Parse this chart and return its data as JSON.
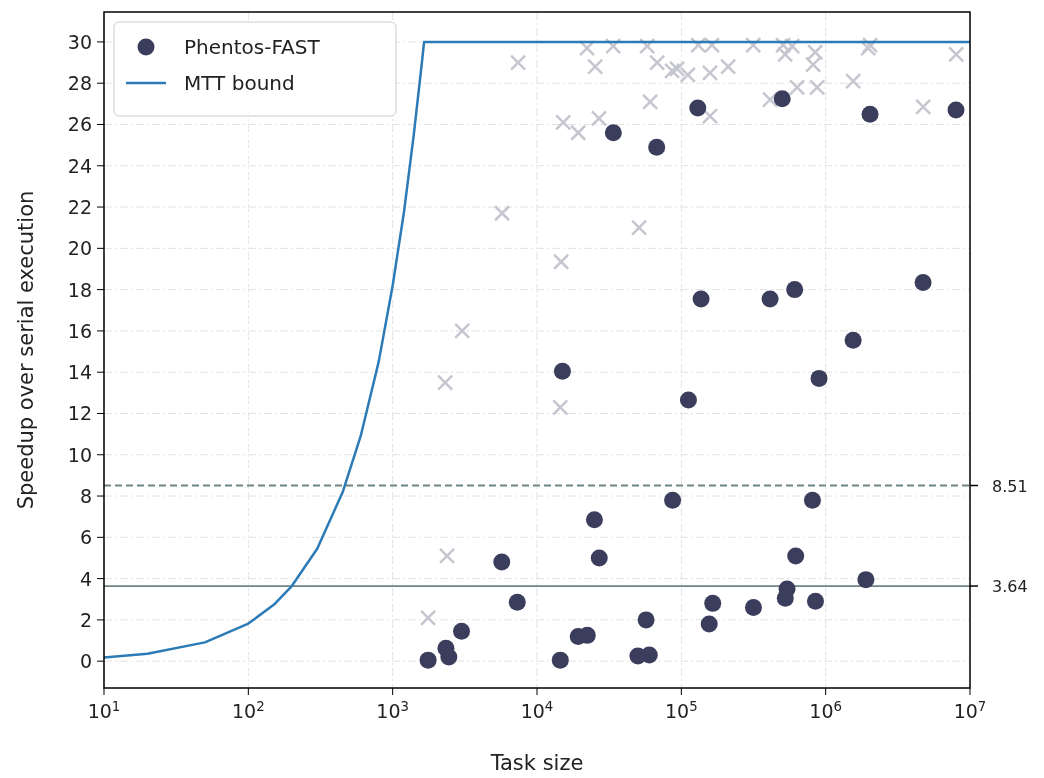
{
  "chart_data": {
    "type": "scatter",
    "xlabel": "Task size",
    "ylabel": "Speedup over serial execution",
    "log": "x",
    "grid": true,
    "legend": "top left",
    "xlim": [
      10,
      10000000
    ],
    "ylim": [
      -1.3,
      31.45
    ],
    "xticks": [
      {
        "value": 10,
        "label": "10$^{1}$"
      },
      {
        "value": 100,
        "label": "10$^{2}$"
      },
      {
        "value": 1000,
        "label": "10$^{3}$"
      },
      {
        "value": 10000,
        "label": "10$^{4}$"
      },
      {
        "value": 100000,
        "label": "10$^{5}$"
      },
      {
        "value": 1000000,
        "label": "10$^{6}$"
      },
      {
        "value": 10000000,
        "label": "10$^{7}$"
      }
    ],
    "yticks": [
      0,
      2,
      4,
      6,
      8,
      10,
      12,
      14,
      16,
      18,
      20,
      22,
      24,
      26,
      28,
      30
    ],
    "ref_lines": [
      {
        "axis": "y",
        "value": 8.51,
        "label": "8.51",
        "color": "#6e8585",
        "line_style": "dashed"
      },
      {
        "axis": "y",
        "value": 3.64,
        "label": "3.64",
        "color": "#6e8585",
        "line_style": "solid"
      }
    ],
    "series": [
      {
        "marker": "cross",
        "color": "#c5c6d0",
        "x": [
          1760,
          2310,
          2380,
          3030,
          5730,
          7400,
          14500,
          14700,
          15200,
          19300,
          22200,
          25300,
          26900,
          33700,
          51000,
          58000,
          60800,
          68000,
          86300,
          93500,
          111000,
          131000,
          158000,
          158000,
          163000,
          211000,
          315000,
          412000,
          507000,
          524000,
          586000,
          634000,
          819000,
          846000,
          873000,
          1550000,
          1970000,
          2030000,
          4740000,
          8020000
        ],
        "values": [
          2.1,
          13.5,
          5.1,
          16.0,
          21.7,
          29.0,
          12.3,
          19.35,
          26.1,
          25.6,
          29.7,
          28.8,
          26.3,
          29.8,
          21.0,
          29.8,
          27.1,
          29.0,
          28.6,
          28.7,
          28.4,
          29.85,
          28.5,
          26.4,
          29.85,
          28.8,
          29.85,
          27.2,
          29.85,
          29.4,
          29.8,
          27.8,
          28.9,
          29.5,
          27.8,
          28.1,
          29.7,
          29.85,
          26.85,
          29.4
        ]
      },
      {
        "name": "Phentos-FAST",
        "marker": "circle",
        "color": "#3b3d5c",
        "x": [
          1760,
          2340,
          2450,
          3000,
          5700,
          7300,
          14500,
          15000,
          19300,
          22300,
          25000,
          27000,
          33800,
          50000,
          57000,
          60000,
          67500,
          87000,
          112000,
          130000,
          137000,
          156000,
          165000,
          316000,
          412000,
          500000,
          525000,
          540000,
          610000,
          620000,
          810000,
          850000,
          900000,
          1550000,
          1900000,
          2030000,
          4730000,
          8000000
        ],
        "values": [
          0.05,
          0.63,
          0.2,
          1.45,
          4.8,
          2.85,
          0.05,
          14.05,
          1.2,
          1.25,
          6.85,
          5.0,
          25.6,
          0.25,
          2.0,
          0.3,
          24.9,
          7.8,
          12.65,
          26.8,
          17.55,
          1.8,
          2.8,
          2.6,
          17.55,
          27.25,
          3.05,
          3.5,
          18.0,
          5.1,
          7.8,
          2.9,
          13.7,
          15.55,
          3.95,
          26.5,
          18.35,
          26.7
        ]
      },
      {
        "type": "line",
        "name": "MTT bound",
        "marker": "none",
        "line_style": "solid",
        "color": "#2d7bb6",
        "x": [
          10,
          20,
          50,
          100,
          150,
          200,
          300,
          450,
          600,
          800,
          1000,
          1200,
          1400,
          1600,
          1650,
          10000000
        ],
        "values": [
          0.18,
          0.36,
          0.91,
          1.82,
          2.73,
          3.64,
          5.45,
          8.18,
          10.9,
          14.5,
          18.2,
          21.8,
          25.5,
          29.1,
          30,
          30
        ]
      }
    ]
  }
}
